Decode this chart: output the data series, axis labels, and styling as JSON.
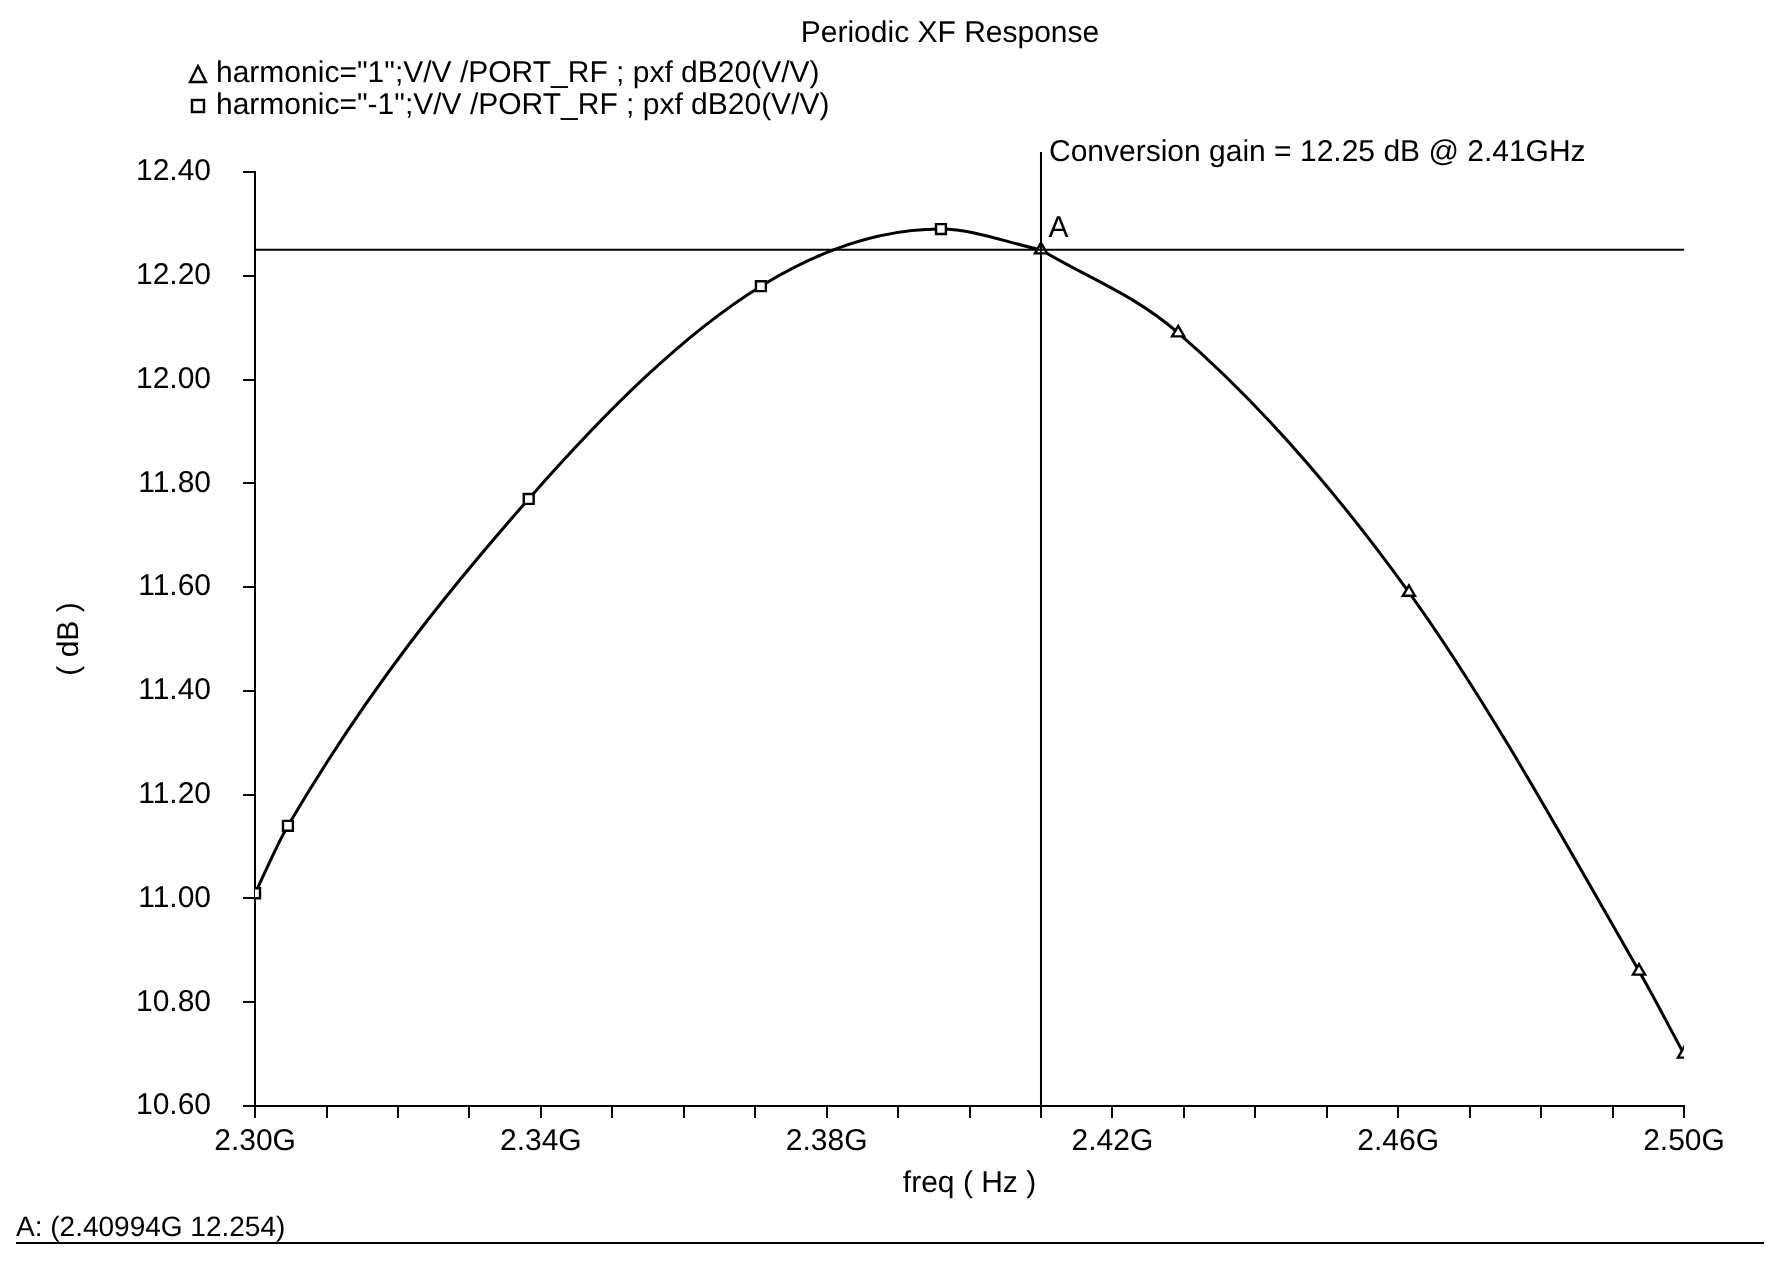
{
  "chart_data": {
    "type": "line",
    "title": "Periodic XF Response",
    "xlabel": "freq ( Hz )",
    "ylabel": "( dB )",
    "series": [
      {
        "name": "harmonic=\"1\";V/V /PORT_RF ; pxf dB20(V/V)",
        "color": "#000000",
        "marker": "triangle",
        "x": [
          2.41,
          2.4292,
          2.4615,
          2.4937,
          2.5
        ],
        "values": [
          12.25,
          12.09,
          11.59,
          10.86,
          10.7
        ]
      },
      {
        "name": "harmonic=\"-1\";V/V /PORT_RF ; pxf dB20(V/V)",
        "color": "#000000",
        "marker": "square",
        "x": [
          2.3,
          2.3046,
          2.3383,
          2.3708,
          2.396,
          2.41
        ],
        "values": [
          11.01,
          11.14,
          11.77,
          12.18,
          12.29,
          12.25
        ]
      }
    ],
    "xlim": [
      2.3,
      2.5
    ],
    "xticks": [
      {
        "value": 2.3,
        "label": "2.30G"
      },
      {
        "value": 2.31,
        "label": null
      },
      {
        "value": 2.32,
        "label": null
      },
      {
        "value": 2.33,
        "label": null
      },
      {
        "value": 2.34,
        "label": "2.34G"
      },
      {
        "value": 2.35,
        "label": null
      },
      {
        "value": 2.36,
        "label": null
      },
      {
        "value": 2.37,
        "label": null
      },
      {
        "value": 2.38,
        "label": "2.38G"
      },
      {
        "value": 2.39,
        "label": null
      },
      {
        "value": 2.4,
        "label": null
      },
      {
        "value": 2.41,
        "label": null
      },
      {
        "value": 2.42,
        "label": "2.42G"
      },
      {
        "value": 2.43,
        "label": null
      },
      {
        "value": 2.44,
        "label": null
      },
      {
        "value": 2.45,
        "label": null
      },
      {
        "value": 2.46,
        "label": "2.46G"
      },
      {
        "value": 2.47,
        "label": null
      },
      {
        "value": 2.48,
        "label": null
      },
      {
        "value": 2.49,
        "label": null
      },
      {
        "value": 2.5,
        "label": "2.50G"
      }
    ],
    "ylim": [
      10.6,
      12.4
    ],
    "yticks": [
      {
        "value": 10.6,
        "label": "10.60"
      },
      {
        "value": 10.8,
        "label": "10.80"
      },
      {
        "value": 11,
        "label": "11.00"
      },
      {
        "value": 11.2,
        "label": "11.20"
      },
      {
        "value": 11.4,
        "label": "11.40"
      },
      {
        "value": 11.6,
        "label": "11.60"
      },
      {
        "value": 11.8,
        "label": "11.80"
      },
      {
        "value": 12,
        "label": "12.00"
      },
      {
        "value": 12.2,
        "label": "12.20"
      },
      {
        "value": 12.4,
        "label": "12.40"
      }
    ],
    "ref_lines": [
      {
        "axis": "y",
        "value": 12.25
      },
      {
        "axis": "x",
        "value": 2.41
      }
    ],
    "annotations": [
      {
        "text": "A",
        "x": 2.40994,
        "y": 12.254
      },
      {
        "text": "Conversion gain = 12.25 dB @ 2.41GHz",
        "x": 2.41,
        "y": 12.4
      },
      "A: (2.40994G 12.254)"
    ],
    "legend": "top left",
    "grid": false
  }
}
